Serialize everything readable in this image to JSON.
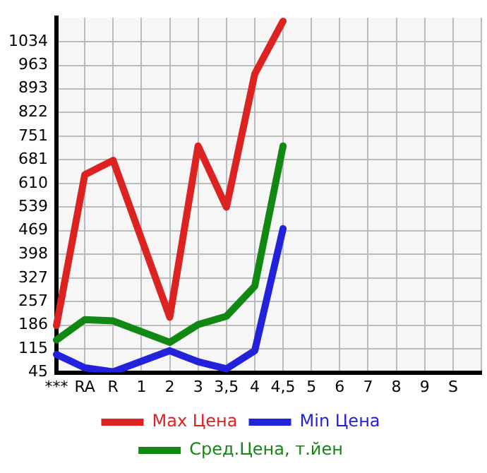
{
  "chart_data": {
    "type": "line",
    "categories": [
      "***",
      "RA",
      "R",
      "1",
      "2",
      "3",
      "3,5",
      "4",
      "4,5",
      "5",
      "6",
      "7",
      "8",
      "9",
      "S",
      null
    ],
    "series": [
      {
        "name": "Max Цена",
        "color": "#dd2222",
        "values": [
          185,
          636,
          679,
          null,
          210,
          722,
          539,
          937,
          1095,
          null,
          null,
          null,
          null,
          null,
          null,
          null
        ]
      },
      {
        "name": "Min Цена",
        "color": "#2222dd",
        "values": [
          99,
          59,
          47,
          null,
          110,
          77,
          56,
          110,
          475,
          null,
          null,
          null,
          null,
          null,
          null,
          null
        ]
      },
      {
        "name": "Сред.Цена, т.йен",
        "color": "#118811",
        "values": [
          142,
          203,
          199,
          null,
          135,
          188,
          213,
          303,
          722,
          null,
          null,
          null,
          null,
          null,
          null,
          null
        ]
      }
    ],
    "ylim": [
      45,
      1105
    ],
    "yticks": [
      45,
      115,
      186,
      257,
      327,
      398,
      469,
      539,
      610,
      681,
      751,
      822,
      893,
      963,
      1034
    ],
    "grid": true,
    "legend": "bottom",
    "marker": "none",
    "line_style": "solid"
  }
}
